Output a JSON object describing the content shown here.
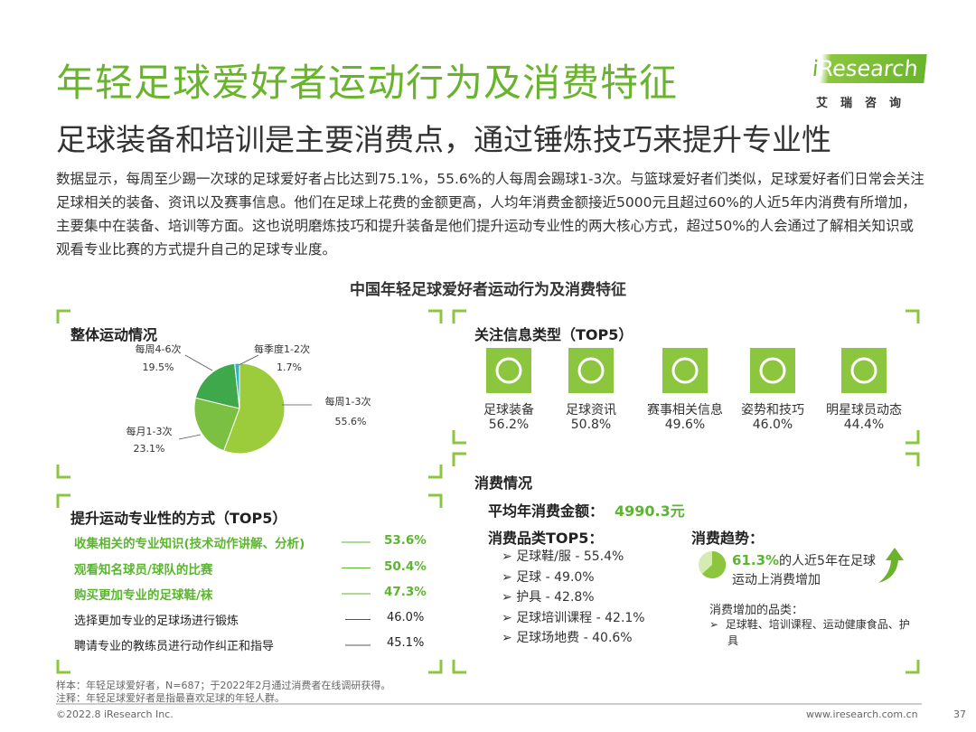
{
  "header": {
    "title": "年轻足球爱好者运动行为及消费特征",
    "subtitle": "足球装备和培训是主要消费点，通过锤炼技巧来提升专业性",
    "logo": "Research",
    "logo_prefix": "i",
    "logo_sub": "艾瑞咨询"
  },
  "intro": "数据显示，每周至少踢一次球的足球爱好者占比达到75.1%，55.6%的人每周会踢球1-3次。与篮球爱好者们类似，足球爱好者们日常会关注足球相关的装备、资讯以及赛事信息。他们在足球上花费的金额更高，人均年消费金额接近5000元且超过60%的人近5年内消费有所增加，主要集中在装备、培训等方面。这也说明磨炼技巧和提升装备是他们提升运动专业性的两大核心方式，超过50%的人会通过了解相关知识或观看专业比赛的方式提升自己的足球专业度。",
  "section_title": "中国年轻足球爱好者运动行为及消费特征",
  "overall": {
    "title": "整体运动情况",
    "chart": {
      "type": "pie",
      "categories": [
        "每周1-3次",
        "每月1-3次",
        "每周4-6次",
        "每季度1-2次"
      ],
      "values": [
        55.6,
        23.1,
        19.5,
        1.7
      ],
      "value_labels": [
        "55.6%",
        "23.1%",
        "19.5%",
        "1.7%"
      ],
      "colors": [
        "#9ccc3c",
        "#7cc043",
        "#3ea84a",
        "#2ab7c9"
      ]
    }
  },
  "methods": {
    "title": "提升运动专业性的方式（TOP5）",
    "items": [
      {
        "label": "收集相关的专业知识(技术动作讲解、分析)",
        "value": "53.6%"
      },
      {
        "label": "观看知名球员/球队的比赛",
        "value": "50.4%"
      },
      {
        "label": "购买更加专业的足球鞋/袜",
        "value": "47.3%"
      },
      {
        "label": "选择更加专业的足球场进行锻炼",
        "value": "46.0%"
      },
      {
        "label": "聘请专业的教练员进行动作纠正和指导",
        "value": "45.1%"
      }
    ]
  },
  "info": {
    "title": "关注信息类型（TOP5）",
    "items": [
      {
        "label": "足球装备",
        "value": "56.2%"
      },
      {
        "label": "足球资讯",
        "value": "50.8%"
      },
      {
        "label": "赛事相关信息",
        "value": "49.6%"
      },
      {
        "label": "姿势和技巧",
        "value": "46.0%"
      },
      {
        "label": "明星球员动态",
        "value": "44.4%"
      }
    ]
  },
  "spending": {
    "title": "消费情况",
    "avg_label": "平均年消费金额：",
    "avg_value": "4990.3元",
    "categories_title": "消费品类TOP5：",
    "categories": [
      "足球鞋/服 - 55.4%",
      "足球 - 49.0%",
      "护具 - 42.8%",
      "足球培训课程 - 42.1%",
      "足球场地费 - 40.6%"
    ],
    "trend_title": "消费趋势：",
    "trend_value": "61.3%",
    "trend_text": "的人近5年在足球运动上消费增加",
    "increase_title": "消费增加的品类：",
    "increase_items": "足球鞋、培训课程、运动健康食品、护具"
  },
  "footer": {
    "notes": [
      "样本：年轻足球爱好者，N=687；于2022年2月通过消费者在线调研获得。",
      "注释：年轻足球爱好者是指最喜欢足球的年轻人群。"
    ],
    "copyright": "©2022.8 iResearch Inc.",
    "url": "www.iresearch.com.cn",
    "page": "37"
  }
}
